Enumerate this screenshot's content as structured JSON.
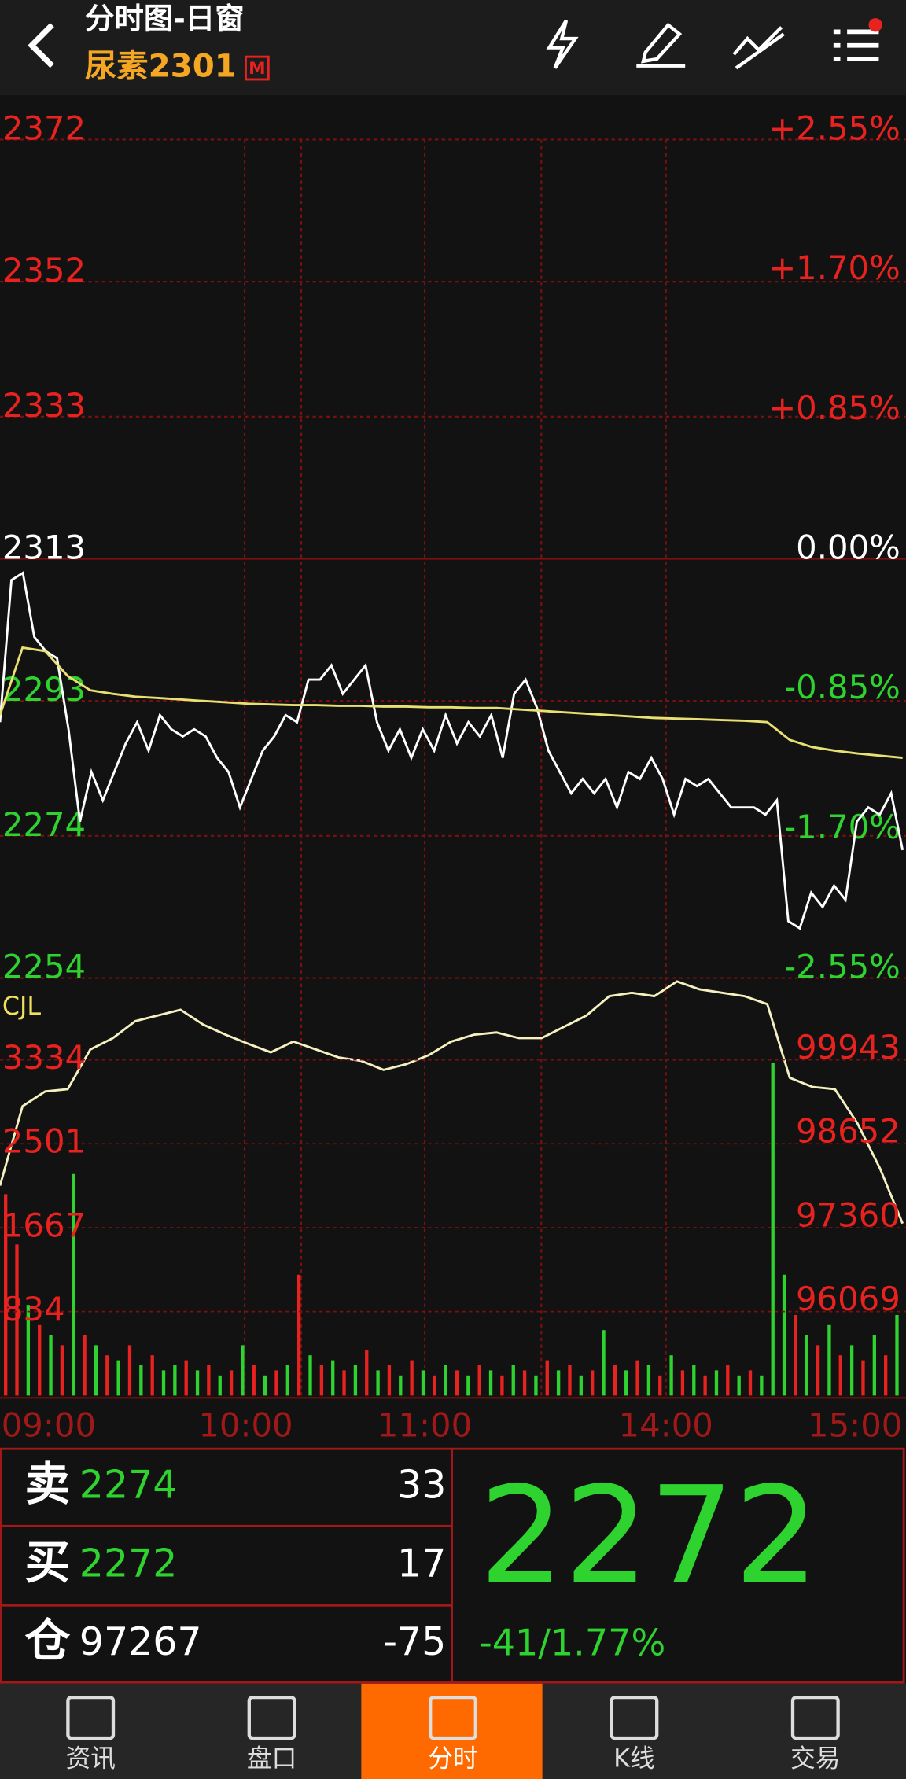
{
  "header": {
    "title": "分时图-日窗",
    "symbol": "尿素2301",
    "badge": "M"
  },
  "chart_data": [
    {
      "type": "line",
      "ylim": [
        2254,
        2372
      ],
      "yticks": [
        2372,
        2352,
        2333,
        2313,
        2293,
        2274,
        2254
      ],
      "y2lim": [
        -2.55,
        2.55
      ],
      "y2ticks": [
        {
          "value": 2.55,
          "label": "+2.55%"
        },
        {
          "value": 1.7,
          "label": "+1.70%"
        },
        {
          "value": 0.85,
          "label": "+0.85%"
        },
        {
          "value": 0,
          "label": "0.00%"
        },
        {
          "value": -0.85,
          "label": "-0.85%"
        },
        {
          "value": -1.7,
          "label": "-1.70%"
        },
        {
          "value": -2.55,
          "label": "-2.55%"
        }
      ],
      "up_color": "#e8221f",
      "down_color": "#2fd32f",
      "flat_color": "#ffffff",
      "series": [
        {
          "color": "#ffffff",
          "values": [
            2290,
            2310,
            2311,
            2302,
            2300,
            2299,
            2289,
            2276,
            2283,
            2279,
            2283,
            2287,
            2290,
            2286,
            2291,
            2289,
            2288,
            2289,
            2288,
            2285,
            2283,
            2278,
            2282,
            2286,
            2288,
            2291,
            2290,
            2296,
            2296,
            2298,
            2294,
            2296,
            2298,
            2290,
            2286,
            2289,
            2285,
            2289,
            2286,
            2291,
            2287,
            2290,
            2288,
            2291,
            2285,
            2294,
            2296,
            2292,
            2286,
            2283,
            2280,
            2282,
            2280,
            2282,
            2278,
            2283,
            2282,
            2285,
            2282,
            2277,
            2282,
            2281,
            2282,
            2280,
            2278,
            2278,
            2278,
            2277,
            2279,
            2262,
            2261,
            2266,
            2264,
            2267,
            2265,
            2276,
            2278,
            2277,
            2280,
            2272
          ]
        },
        {
          "color": "#e8e070",
          "values": [
            2291.0,
            2300.5,
            2300.0,
            2296.5,
            2294.5,
            2294.0,
            2293.6,
            2293.4,
            2293.2,
            2293.0,
            2292.8,
            2292.6,
            2292.5,
            2292.4,
            2292.4,
            2292.3,
            2292.3,
            2292.2,
            2292.2,
            2292.1,
            2292.1,
            2292.0,
            2292.0,
            2291.8,
            2291.6,
            2291.4,
            2291.2,
            2291.0,
            2290.8,
            2290.6,
            2290.5,
            2290.4,
            2290.3,
            2290.2,
            2290.0,
            2287.5,
            2286.5,
            2286.0,
            2285.6,
            2285.3,
            2285.0
          ]
        }
      ]
    },
    {
      "type": "bar",
      "label": "CJL",
      "ylim": [
        0,
        4147
      ],
      "yticks": [
        3334,
        2501,
        1667,
        834
      ],
      "y2lim": [
        94621,
        101043
      ],
      "y2ticks": [
        99943,
        98652,
        97360,
        96069
      ],
      "tick_color": "#e8221f",
      "xtick_labels": [
        "09:00",
        "10:00",
        "11:00",
        "14:00",
        "15:00"
      ],
      "series": [
        {
          "color": "#e8221f",
          "values": [
            2000,
            1500,
            null,
            700,
            null,
            500,
            null,
            600,
            null,
            400,
            null,
            500,
            null,
            400,
            null,
            null,
            350,
            null,
            300,
            null,
            250,
            null,
            300,
            null,
            250,
            null,
            1200,
            null,
            300,
            null,
            250,
            null,
            450,
            null,
            300,
            null,
            350,
            null,
            200,
            null,
            250,
            null,
            300,
            null,
            200,
            null,
            250,
            null,
            350,
            null,
            300,
            null,
            250,
            null,
            300,
            null,
            350,
            null,
            200,
            null,
            250,
            null,
            200,
            null,
            300,
            null,
            250,
            null,
            null,
            null,
            800,
            null,
            500,
            null,
            400,
            null,
            350,
            null,
            400,
            null
          ]
        },
        {
          "color": "#2fd32f",
          "values": [
            null,
            null,
            900,
            null,
            600,
            null,
            2200,
            null,
            500,
            null,
            350,
            null,
            300,
            null,
            250,
            300,
            null,
            250,
            null,
            200,
            null,
            500,
            null,
            200,
            null,
            300,
            null,
            400,
            null,
            350,
            null,
            300,
            null,
            250,
            null,
            200,
            null,
            250,
            null,
            300,
            null,
            200,
            null,
            250,
            null,
            300,
            null,
            200,
            null,
            250,
            null,
            200,
            null,
            650,
            null,
            250,
            null,
            300,
            null,
            400,
            null,
            300,
            null,
            250,
            null,
            200,
            null,
            200,
            3300,
            1200,
            null,
            600,
            null,
            700,
            null,
            500,
            null,
            600,
            null,
            800
          ]
        },
        {
          "type": "line",
          "axis": "y2",
          "color": "#f4f0c0",
          "values": [
            97849,
            99071,
            99298,
            99333,
            99943,
            100118,
            100380,
            100467,
            100554,
            100327,
            100170,
            100031,
            99900,
            100065,
            99943,
            99821,
            99769,
            99629,
            99716,
            99856,
            100065,
            100170,
            100205,
            100118,
            100118,
            100292,
            100467,
            100763,
            100816,
            100763,
            100990,
            100868,
            100816,
            100763,
            100641,
            99507,
            99367,
            99333,
            98809,
            98111,
            97267
          ]
        }
      ]
    }
  ],
  "quote": {
    "rows": [
      {
        "label": "卖",
        "price": 2274,
        "volume": 33
      },
      {
        "label": "买",
        "price": 2272,
        "volume": 17
      },
      {
        "label": "仓",
        "price": 97267,
        "volume": -75
      }
    ],
    "last": 2272,
    "change": "-41/1.77%"
  },
  "tabs": [
    "资讯",
    "盘口",
    "分时",
    "K线",
    "交易"
  ],
  "active_tab": 2
}
